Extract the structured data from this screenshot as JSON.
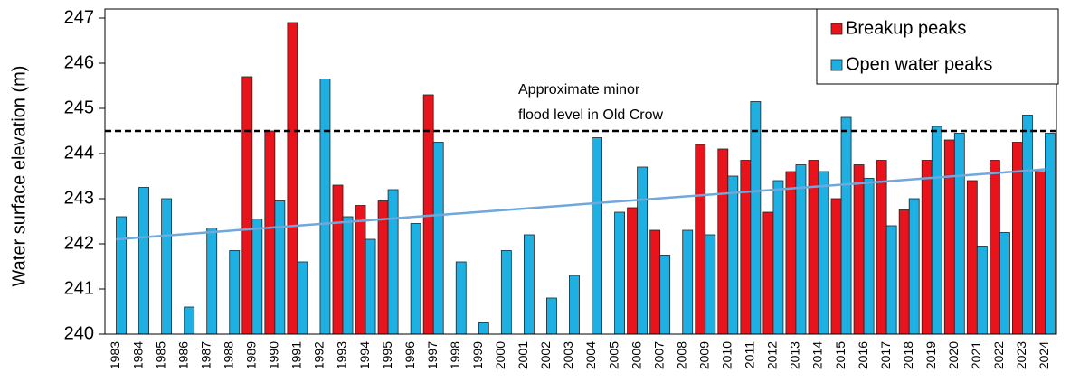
{
  "chart_data": {
    "type": "bar",
    "y_label": "Water surface elevation (m)",
    "categories": [
      "1983",
      "1984",
      "1985",
      "1986",
      "1987",
      "1988",
      "1989",
      "1990",
      "1991",
      "1992",
      "1993",
      "1994",
      "1995",
      "1996",
      "1997",
      "1998",
      "1999",
      "2000",
      "2001",
      "2002",
      "2003",
      "2004",
      "2005",
      "2006",
      "2007",
      "2008",
      "2009",
      "2010",
      "2011",
      "2012",
      "2013",
      "2014",
      "2015",
      "2016",
      "2017",
      "2018",
      "2019",
      "2020",
      "2021",
      "2022",
      "2023",
      "2024"
    ],
    "series": [
      {
        "name": "Breakup peaks",
        "color": "#e8131b",
        "values": [
          null,
          null,
          null,
          null,
          null,
          null,
          245.7,
          244.5,
          246.9,
          null,
          243.3,
          242.85,
          242.95,
          null,
          245.3,
          null,
          null,
          null,
          null,
          null,
          null,
          null,
          null,
          242.8,
          242.3,
          null,
          244.2,
          244.1,
          243.85,
          242.7,
          243.6,
          243.85,
          243.0,
          243.75,
          243.85,
          242.75,
          243.85,
          244.3,
          243.4,
          243.85,
          244.25,
          243.6
        ]
      },
      {
        "name": "Open water peaks",
        "color": "#1fb0e3",
        "values": [
          242.6,
          243.25,
          243.0,
          240.6,
          242.35,
          241.85,
          242.55,
          242.95,
          241.6,
          245.65,
          242.6,
          242.1,
          243.2,
          242.45,
          244.25,
          241.6,
          240.25,
          241.85,
          242.2,
          240.8,
          241.3,
          244.35,
          242.7,
          243.7,
          241.75,
          242.3,
          242.2,
          243.5,
          245.15,
          243.4,
          243.75,
          243.6,
          244.8,
          243.45,
          242.4,
          243.0,
          244.6,
          244.45,
          241.95,
          242.25,
          244.85,
          244.45
        ]
      }
    ],
    "trendline": {
      "color": "#6fa8dc",
      "values": [
        242.1,
        243.65
      ]
    },
    "reference_line": {
      "value": 244.5,
      "label": [
        "Approximate minor",
        "flood level in Old Crow"
      ]
    },
    "ylim": [
      240,
      247
    ],
    "yticks": [
      240,
      241,
      242,
      243,
      244,
      245,
      246,
      247
    ],
    "legend": "upper right"
  }
}
